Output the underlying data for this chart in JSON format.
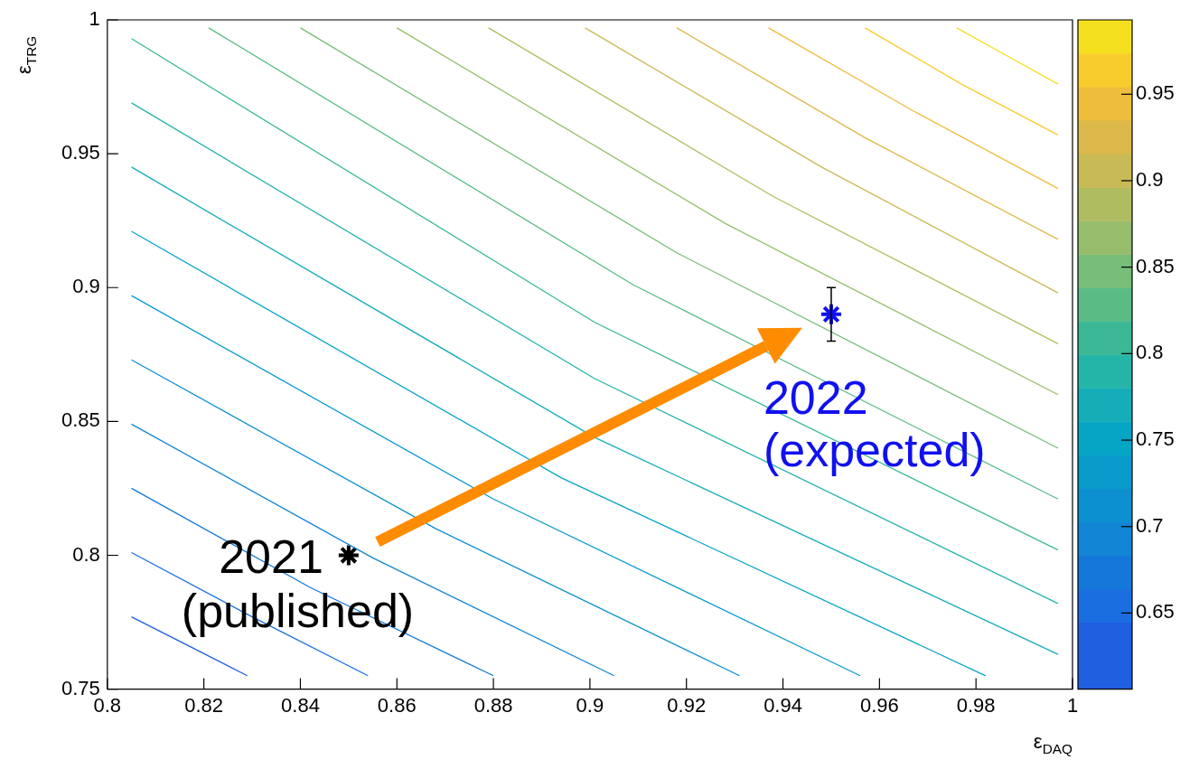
{
  "chart_data": {
    "type": "line",
    "xlabel": "ε$_{DAQ}$",
    "ylabel": "ε$_{TRG}$",
    "xlim": [
      0.8,
      1
    ],
    "xticks": [
      0.8,
      0.82,
      0.84,
      0.86,
      0.88,
      0.9,
      0.92,
      0.94,
      0.96,
      0.98,
      1
    ],
    "ylim": [
      0.75,
      1
    ],
    "yticks": [
      0.75,
      0.8,
      0.85,
      0.9,
      0.95,
      1
    ],
    "clim": [
      0.606,
      0.993
    ],
    "cticks": [
      0.65,
      0.7,
      0.75,
      0.8,
      0.85,
      0.9,
      0.95
    ],
    "grid": false,
    "legend": false,
    "marker": "none",
    "line_style": "solid",
    "series": [
      {
        "type": "line",
        "color": "#1f5fe0",
        "x": [
          0.805,
          0.817,
          0.829
        ],
        "values": [
          0.777,
          0.766,
          0.755
        ]
      },
      {
        "type": "line",
        "color": "#1a6ee0",
        "x": [
          0.805,
          0.83,
          0.854
        ],
        "values": [
          0.801,
          0.777,
          0.755
        ]
      },
      {
        "type": "line",
        "color": "#1478da",
        "x": [
          0.805,
          0.842,
          0.88
        ],
        "values": [
          0.825,
          0.788,
          0.755
        ]
      },
      {
        "type": "line",
        "color": "#1285d4",
        "x": [
          0.805,
          0.855,
          0.905
        ],
        "values": [
          0.849,
          0.799,
          0.755
        ]
      },
      {
        "type": "line",
        "color": "#0d90d0",
        "x": [
          0.805,
          0.868,
          0.931
        ],
        "values": [
          0.873,
          0.81,
          0.755
        ]
      },
      {
        "type": "line",
        "color": "#089bcc",
        "x": [
          0.805,
          0.88,
          0.956
        ],
        "values": [
          0.897,
          0.821,
          0.755
        ]
      },
      {
        "type": "line",
        "color": "#05a5c6",
        "x": [
          0.805,
          0.894,
          0.982
        ],
        "values": [
          0.921,
          0.829,
          0.755
        ]
      },
      {
        "type": "line",
        "color": "#14adb8",
        "x": [
          0.805,
          0.901,
          0.997
        ],
        "values": [
          0.945,
          0.844,
          0.763
        ]
      },
      {
        "type": "line",
        "color": "#25b4a8",
        "x": [
          0.805,
          0.901,
          0.997
        ],
        "values": [
          0.969,
          0.866,
          0.782
        ]
      },
      {
        "type": "line",
        "color": "#3cb896",
        "x": [
          0.805,
          0.901,
          0.997
        ],
        "values": [
          0.993,
          0.887,
          0.802
        ]
      },
      {
        "type": "line",
        "color": "#5abb85",
        "x": [
          0.821,
          0.909,
          0.997
        ],
        "values": [
          0.997,
          0.901,
          0.821
        ]
      },
      {
        "type": "line",
        "color": "#78bd78",
        "x": [
          0.84,
          0.918,
          0.997
        ],
        "values": [
          0.997,
          0.913,
          0.84
        ]
      },
      {
        "type": "line",
        "color": "#96bd6c",
        "x": [
          0.86,
          0.928,
          0.997
        ],
        "values": [
          0.997,
          0.924,
          0.86
        ]
      },
      {
        "type": "line",
        "color": "#b0bc60",
        "x": [
          0.879,
          0.938,
          0.997
        ],
        "values": [
          0.997,
          0.934,
          0.879
        ]
      },
      {
        "type": "line",
        "color": "#c8ba55",
        "x": [
          0.899,
          0.948,
          0.997
        ],
        "values": [
          0.997,
          0.945,
          0.898
        ]
      },
      {
        "type": "line",
        "color": "#dcb94a",
        "x": [
          0.918,
          0.957,
          0.997
        ],
        "values": [
          0.997,
          0.956,
          0.918
        ]
      },
      {
        "type": "line",
        "color": "#eebd3c",
        "x": [
          0.937,
          0.967,
          0.997
        ],
        "values": [
          0.997,
          0.966,
          0.937
        ]
      },
      {
        "type": "line",
        "color": "#f9cc2e",
        "x": [
          0.957,
          0.977,
          0.997
        ],
        "values": [
          0.997,
          0.976,
          0.957
        ]
      },
      {
        "type": "line",
        "color": "#f5e020",
        "x": [
          0.976,
          0.986,
          0.997
        ],
        "values": [
          0.997,
          0.987,
          0.976
        ]
      },
      {
        "type": "scatter",
        "marker": "cross",
        "color": "#000000",
        "x": [
          0.85
        ],
        "values": [
          0.8
        ]
      },
      {
        "type": "scatter",
        "marker": "cross",
        "color": "#1010f0",
        "x": [
          0.95
        ],
        "values": [
          0.89
        ],
        "errors": [
          [
            0.88,
            0.9
          ]
        ]
      }
    ],
    "annotations": [
      {
        "text": "2021\n(published)",
        "x": 0.85,
        "y": 0.8
      },
      {
        "text": "2022\n(expected)",
        "x": 0.95,
        "y": 0.89
      }
    ]
  }
}
